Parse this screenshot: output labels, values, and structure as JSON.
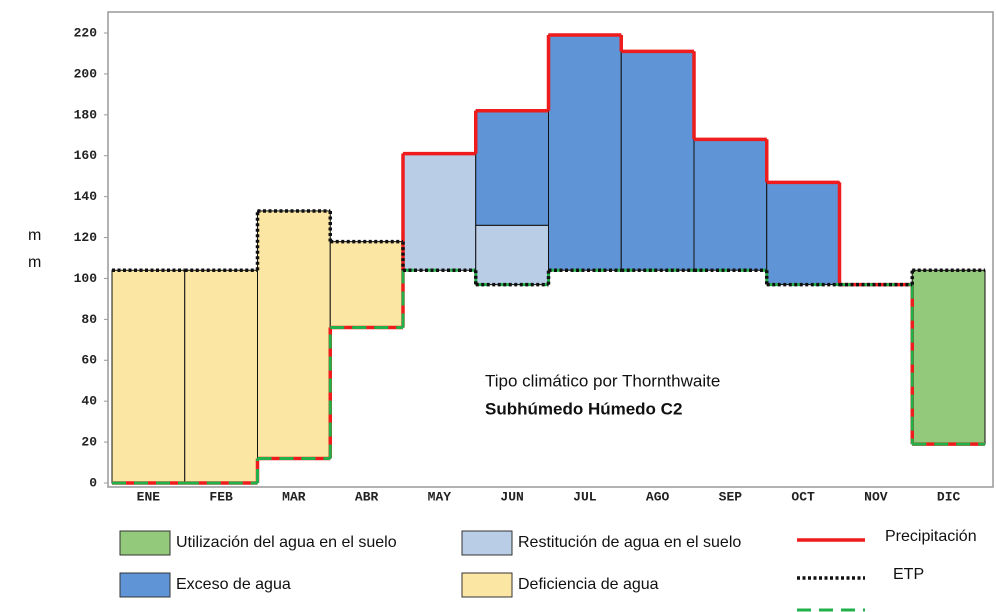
{
  "chart_data": {
    "type": "step",
    "categories": [
      "ENE",
      "FEB",
      "MAR",
      "ABR",
      "MAY",
      "JUN",
      "JUL",
      "AGO",
      "SEP",
      "OCT",
      "NOV",
      "DIC"
    ],
    "ylim": [
      0,
      220
    ],
    "yticks": [
      0,
      20,
      40,
      60,
      80,
      100,
      120,
      140,
      160,
      180,
      200,
      220
    ],
    "ylabel": [
      "m",
      "m"
    ],
    "annotations": [
      "Tipo climático por Thornthwaite",
      "Subhúmedo Húmedo C2"
    ],
    "areas": [
      {
        "name": "Utilización del agua en el suelo",
        "color": "#93c97b",
        "values": [
          null,
          null,
          null,
          null,
          null,
          null,
          null,
          null,
          null,
          null,
          null,
          [
            19,
            104
          ]
        ]
      },
      {
        "name": "Restitución de agua en el suelo",
        "color": "#b9cde6",
        "values": [
          null,
          null,
          null,
          null,
          [
            104,
            161
          ],
          [
            97,
            126
          ],
          null,
          null,
          null,
          null,
          null,
          null
        ]
      },
      {
        "name": "Exceso de agua",
        "color": "#5f95d7",
        "values": [
          null,
          null,
          null,
          null,
          null,
          [
            126,
            182
          ],
          [
            104,
            219
          ],
          [
            104,
            211
          ],
          [
            104,
            168
          ],
          [
            97,
            147
          ],
          null,
          null
        ]
      },
      {
        "name": "Deficiencia de agua",
        "color": "#fce6a3",
        "values": [
          [
            0,
            104
          ],
          [
            0,
            104
          ],
          [
            12,
            133
          ],
          [
            76,
            118
          ],
          null,
          null,
          null,
          null,
          null,
          null,
          null,
          null
        ]
      }
    ],
    "series": [
      {
        "name": "Precipitación",
        "color": "#ee1c1c",
        "style": "solid",
        "values": [
          0,
          0,
          12,
          76,
          161,
          182,
          219,
          211,
          168,
          147,
          97,
          19
        ]
      },
      {
        "color": "#22b04a",
        "style": "dashed",
        "values": [
          0,
          0,
          12,
          76,
          104,
          97,
          104,
          104,
          104,
          97,
          97,
          19
        ]
      },
      {
        "name": "ETP",
        "color": "#111111",
        "style": "dotted",
        "values": [
          104,
          104,
          133,
          118,
          104,
          97,
          104,
          104,
          104,
          97,
          97,
          104
        ]
      }
    ]
  }
}
